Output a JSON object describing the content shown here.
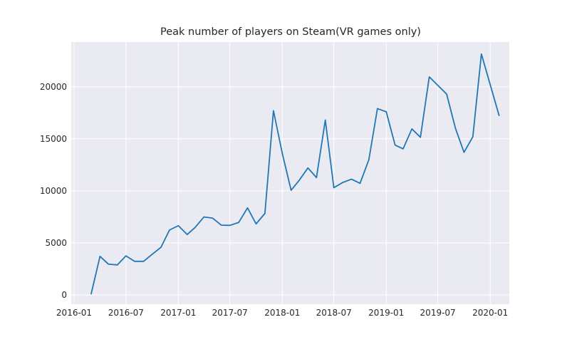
{
  "chart_data": {
    "type": "line",
    "title": "Peak number of players on Steam(VR games only)",
    "xlabel": "",
    "ylabel": "",
    "x_ticks": [
      "2016-01",
      "2016-07",
      "2017-01",
      "2017-07",
      "2018-01",
      "2018-07",
      "2019-01",
      "2019-07",
      "2020-01"
    ],
    "y_ticks": [
      "0",
      "5000",
      "10000",
      "15000",
      "20000"
    ],
    "xlim": [
      "2015-12-22",
      "2020-03-08"
    ],
    "ylim": [
      -900,
      24300
    ],
    "grid": true,
    "background": "#eaeaf2",
    "grid_color": "#ffffff",
    "line_color": "#1f77b4",
    "series": [
      {
        "x": [
          "2016-03",
          "2016-04",
          "2016-05",
          "2016-06",
          "2016-07",
          "2016-08",
          "2016-09",
          "2016-10",
          "2016-11",
          "2016-12",
          "2017-01",
          "2017-02",
          "2017-03",
          "2017-04",
          "2017-05",
          "2017-06",
          "2017-07",
          "2017-08",
          "2017-09",
          "2017-10",
          "2017-11",
          "2017-12",
          "2018-01",
          "2018-02",
          "2018-03",
          "2018-04",
          "2018-05",
          "2018-06",
          "2018-07",
          "2018-08",
          "2018-09",
          "2018-10",
          "2018-11",
          "2018-12",
          "2019-01",
          "2019-02",
          "2019-03",
          "2019-04",
          "2019-05",
          "2019-06",
          "2019-08",
          "2019-09",
          "2019-10",
          "2019-11",
          "2019-12",
          "2020-02"
        ],
        "values": [
          100,
          3700,
          2950,
          2880,
          3750,
          3220,
          3220,
          3900,
          4570,
          6230,
          6650,
          5800,
          6480,
          7490,
          7380,
          6700,
          6680,
          6960,
          8360,
          6820,
          7830,
          17700,
          13600,
          10050,
          11000,
          12200,
          11270,
          16800,
          10300,
          10800,
          11120,
          10720,
          13000,
          17900,
          17600,
          14400,
          14030,
          15950,
          15150,
          20950,
          19300,
          16000,
          13700,
          15200,
          23150,
          17250
        ]
      }
    ]
  }
}
